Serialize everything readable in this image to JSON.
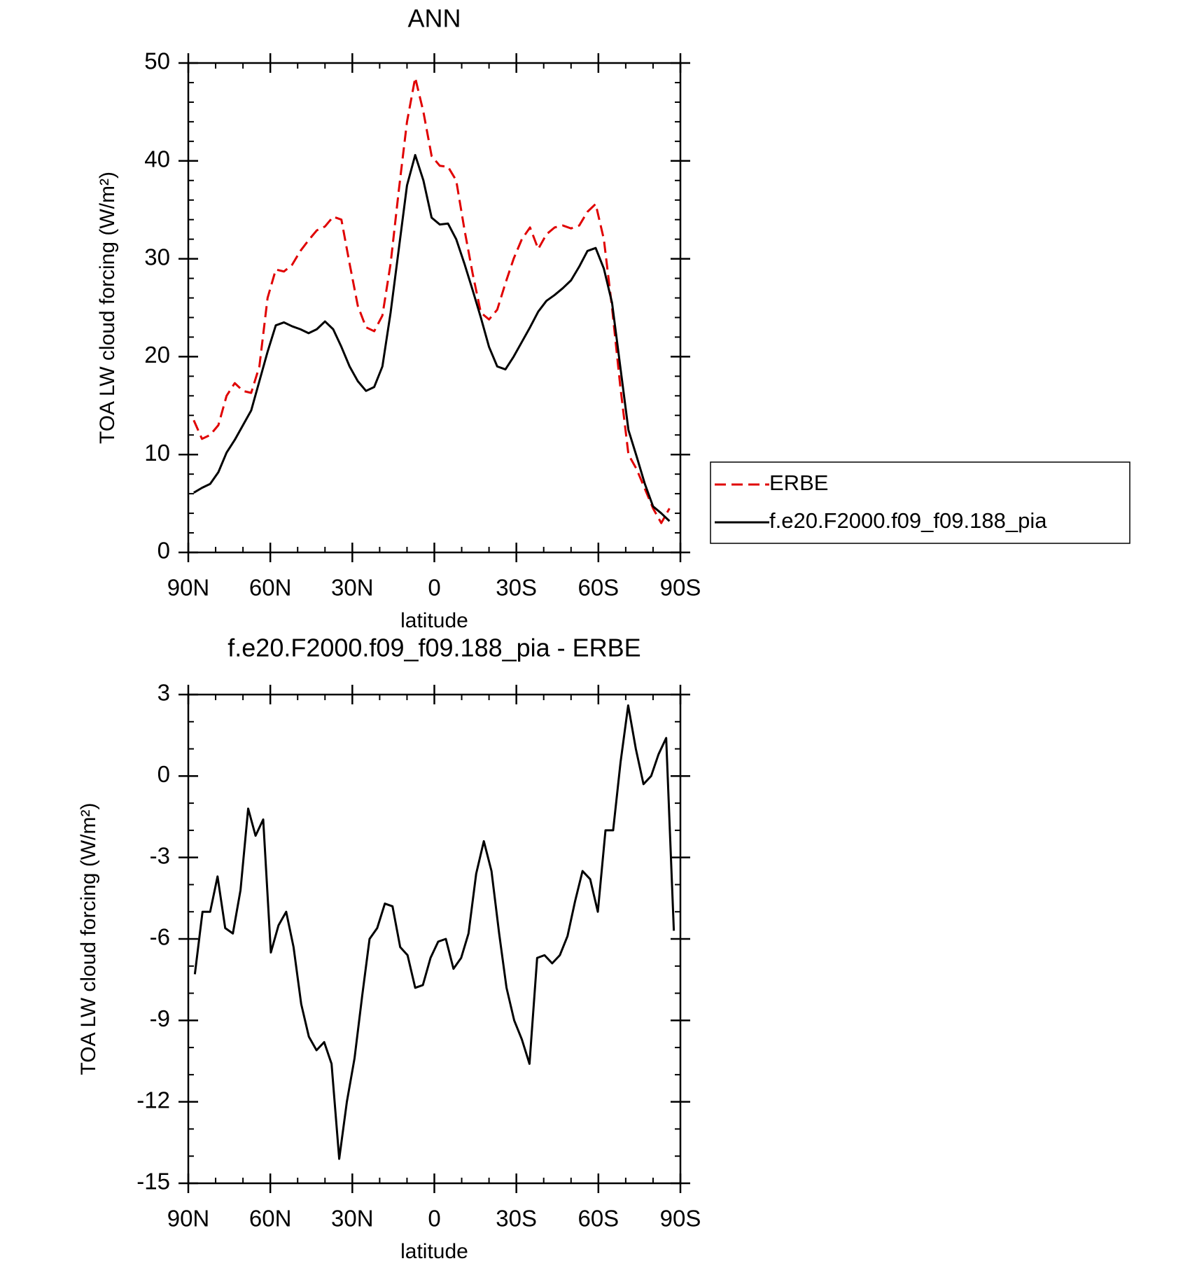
{
  "chart_data": [
    {
      "type": "line",
      "title": "ANN",
      "xlabel": "latitude",
      "ylabel": "TOA LW cloud forcing (W/m²)",
      "x": [
        88,
        85,
        82,
        79,
        76,
        73,
        70,
        67,
        64,
        61,
        58,
        55,
        52,
        49,
        46,
        43,
        40,
        37,
        34,
        31,
        28,
        25,
        22,
        19,
        16,
        13,
        10,
        7,
        4,
        1,
        -2,
        -5,
        -8,
        -11,
        -14,
        -17,
        -20,
        -23,
        -26,
        -29,
        -32,
        -35,
        -38,
        -41,
        -44,
        -47,
        -50,
        -53,
        -56,
        -59,
        -62,
        -65,
        -68,
        -71,
        -74,
        -77,
        -80,
        -83,
        -86
      ],
      "series": [
        {
          "name": "ERBE",
          "color": "#e00000",
          "linestyle": "dashed",
          "values": [
            13.5,
            11.6,
            12,
            13,
            16,
            17.3,
            16.5,
            16.3,
            19,
            26,
            28.9,
            28.7,
            29.4,
            30.8,
            31.9,
            32.9,
            33.3,
            34.3,
            34,
            29.5,
            25.2,
            23,
            22.6,
            24.2,
            29.5,
            37,
            44,
            48.5,
            45,
            40.5,
            39.5,
            39.4,
            38,
            33,
            28.5,
            24.5,
            23.8,
            24.8,
            27.5,
            30,
            32,
            33.2,
            31,
            32.5,
            33.2,
            33.4,
            33.1,
            33.4,
            34.8,
            35.6,
            32,
            25,
            17,
            10,
            8.5,
            6.5,
            4.5,
            3,
            4.5
          ]
        },
        {
          "name": "f.e20.F2000.f09_f09.188_pia",
          "color": "#000000",
          "linestyle": "solid",
          "values": [
            6.1,
            6.6,
            7,
            8.2,
            10.2,
            11.5,
            13,
            14.5,
            17.5,
            20.5,
            23.2,
            23.5,
            23.1,
            22.8,
            22.4,
            22.8,
            23.6,
            22.8,
            21,
            19,
            17.5,
            16.5,
            16.9,
            19,
            24.5,
            31,
            37.5,
            40.6,
            38,
            34.2,
            33.5,
            33.6,
            32,
            29.5,
            26.8,
            24,
            21,
            19,
            18.7,
            20,
            21.5,
            23,
            24.6,
            25.7,
            26.3,
            27,
            27.8,
            29.2,
            30.8,
            31.1,
            29,
            25.5,
            19,
            12.5,
            9.8,
            7,
            4.7,
            4,
            3.2
          ]
        }
      ],
      "xlim": [
        90,
        -90
      ],
      "xticks": [
        {
          "value": 90,
          "label": "90N"
        },
        {
          "value": 60,
          "label": "60N"
        },
        {
          "value": 30,
          "label": "30N"
        },
        0,
        {
          "value": -30,
          "label": "30S"
        },
        {
          "value": -60,
          "label": "60S"
        },
        {
          "value": -90,
          "label": "90S"
        }
      ],
      "ylim": [
        0,
        50
      ],
      "yticks": [
        0,
        10,
        20,
        30,
        40,
        50
      ],
      "legend": "outside right"
    },
    {
      "type": "line",
      "title": "f.e20.F2000.f09_f09.188_pia - ERBE",
      "xlabel": "latitude",
      "ylabel": "TOA LW cloud forcing (W/m²)",
      "x": [
        87.6,
        84.8,
        82.0,
        79.3,
        76.5,
        73.7,
        70.9,
        68.1,
        65.4,
        62.6,
        59.8,
        57.0,
        54.2,
        51.5,
        48.7,
        45.9,
        43.1,
        40.3,
        37.6,
        34.8,
        32.0,
        29.2,
        26.4,
        23.7,
        20.9,
        18.1,
        15.3,
        12.5,
        9.8,
        7.0,
        4.2,
        1.4,
        -1.4,
        -4.2,
        -7.0,
        -9.8,
        -12.5,
        -15.3,
        -18.1,
        -20.9,
        -23.7,
        -26.4,
        -29.2,
        -32.0,
        -34.8,
        -37.6,
        -40.3,
        -43.1,
        -45.9,
        -48.7,
        -51.5,
        -54.2,
        -57.0,
        -59.8,
        -62.6,
        -65.4,
        -68.1,
        -70.9,
        -73.7,
        -76.5,
        -79.3,
        -82.0,
        -84.8,
        -87.6
      ],
      "values": [
        -7.3,
        -5,
        -5,
        -3.7,
        -5.6,
        -5.8,
        -4.2,
        -1.2,
        -2.2,
        -1.6,
        -6.5,
        -5.5,
        -5,
        -6.3,
        -8.4,
        -9.6,
        -10.1,
        -9.8,
        -10.6,
        -14.1,
        -12,
        -10.4,
        -8.1,
        -6,
        -5.6,
        -4.7,
        -4.8,
        -6.3,
        -6.6,
        -7.8,
        -7.7,
        -6.7,
        -6.1,
        -6,
        -7.1,
        -6.7,
        -5.8,
        -3.6,
        -2.4,
        -3.5,
        -5.8,
        -7.8,
        -9,
        -9.7,
        -10.6,
        -6.7,
        -6.6,
        -6.9,
        -6.6,
        -5.9,
        -4.6,
        -3.5,
        -3.8,
        -5,
        -2,
        -2,
        0.5,
        2.6,
        1,
        -0.3,
        0,
        0.8,
        1.4,
        -5.7
      ],
      "color": "#000000",
      "xlim": [
        90,
        -90
      ],
      "xticks": [
        {
          "value": 90,
          "label": "90N"
        },
        {
          "value": 60,
          "label": "60N"
        },
        {
          "value": 30,
          "label": "30N"
        },
        0,
        {
          "value": -30,
          "label": "30S"
        },
        {
          "value": -60,
          "label": "60S"
        },
        {
          "value": -90,
          "label": "90S"
        }
      ],
      "ylim": [
        -15,
        3
      ],
      "yticks": [
        -15,
        -12,
        -9,
        -6,
        -3,
        0,
        3
      ]
    }
  ]
}
